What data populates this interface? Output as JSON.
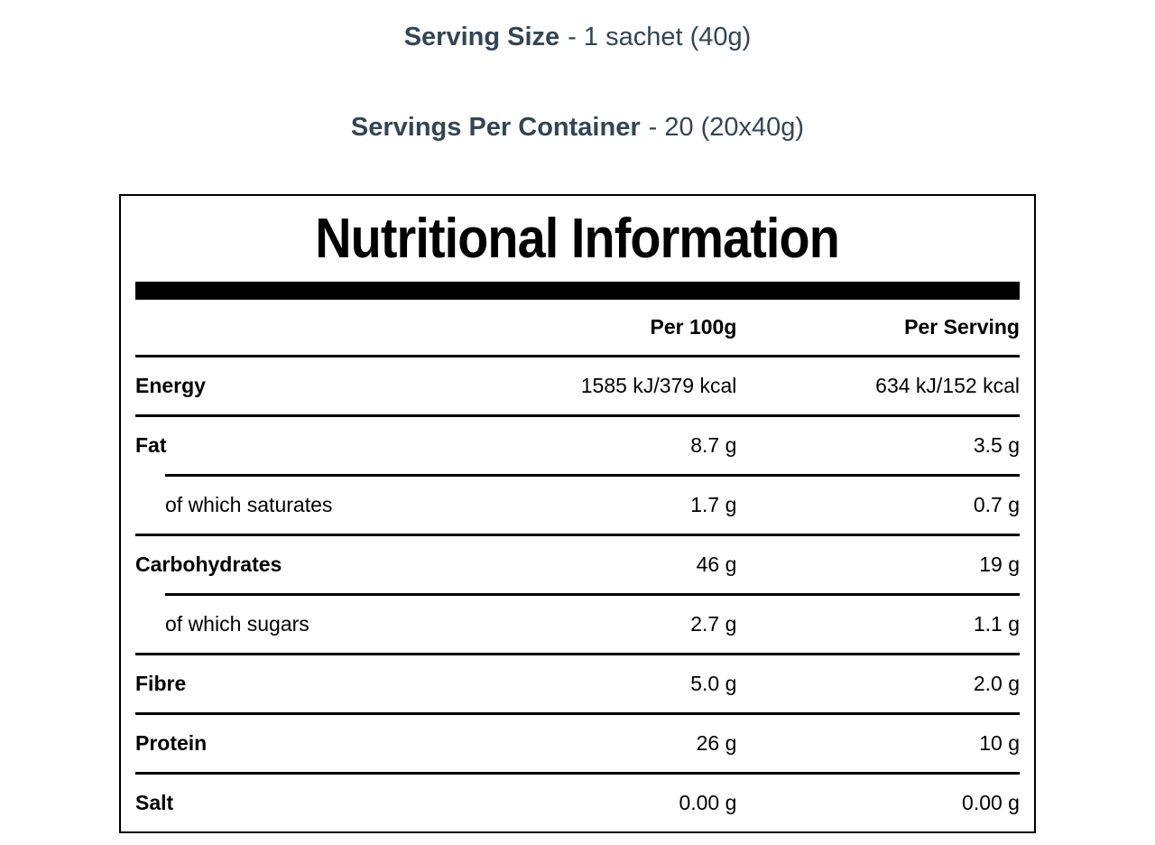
{
  "header": {
    "serving_size_label": "Serving Size",
    "serving_size_value": "- 1 sachet (40g)",
    "servings_per_container_label": "Servings Per Container",
    "servings_per_container_value": "- 20 (20x40g)"
  },
  "table": {
    "title": "Nutritional Information",
    "columns": {
      "per_100g": "Per 100g",
      "per_serving": "Per Serving"
    },
    "rows": [
      {
        "label": "Energy",
        "per_100g": "1585 kJ/379 kcal",
        "per_serving": "634 kJ/152 kcal",
        "bold": true,
        "indent": false,
        "rule": "full"
      },
      {
        "label": "Fat",
        "per_100g": "8.7 g",
        "per_serving": "3.5 g",
        "bold": true,
        "indent": false,
        "rule": "full"
      },
      {
        "label": "of which saturates",
        "per_100g": "1.7 g",
        "per_serving": "0.7 g",
        "bold": false,
        "indent": true,
        "rule": "indent"
      },
      {
        "label": "Carbohydrates",
        "per_100g": "46 g",
        "per_serving": "19 g",
        "bold": true,
        "indent": false,
        "rule": "full"
      },
      {
        "label": "of which sugars",
        "per_100g": "2.7 g",
        "per_serving": "1.1 g",
        "bold": false,
        "indent": true,
        "rule": "indent"
      },
      {
        "label": "Fibre",
        "per_100g": "5.0 g",
        "per_serving": "2.0 g",
        "bold": true,
        "indent": false,
        "rule": "full"
      },
      {
        "label": "Protein",
        "per_100g": "26 g",
        "per_serving": "10 g",
        "bold": true,
        "indent": false,
        "rule": "full"
      },
      {
        "label": "Salt",
        "per_100g": "0.00 g",
        "per_serving": "0.00 g",
        "bold": true,
        "indent": false,
        "rule": "full"
      }
    ]
  },
  "colors": {
    "heading_text": "#334555",
    "table_text": "#000000",
    "rule": "#000000",
    "background": "#ffffff"
  }
}
